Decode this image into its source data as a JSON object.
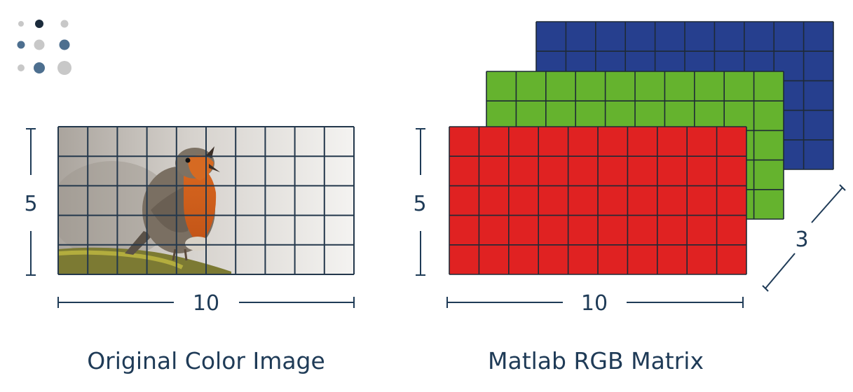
{
  "left": {
    "caption": "Original Color Image",
    "rows_label": "5",
    "cols_label": "10",
    "grid": {
      "rows": 5,
      "cols": 10
    }
  },
  "right": {
    "caption": "Matlab RGB Matrix",
    "rows_label": "5",
    "cols_label": "10",
    "depth_label": "3",
    "layers": [
      {
        "color": "#e02222"
      },
      {
        "color": "#65b32e"
      },
      {
        "color": "#263f8e"
      }
    ]
  },
  "palette": {
    "ink": "#1f3b57",
    "dot_dark": "#1b2b3c",
    "dot_blue": "#4d6f8f",
    "dot_grey": "#c8c8c8"
  }
}
